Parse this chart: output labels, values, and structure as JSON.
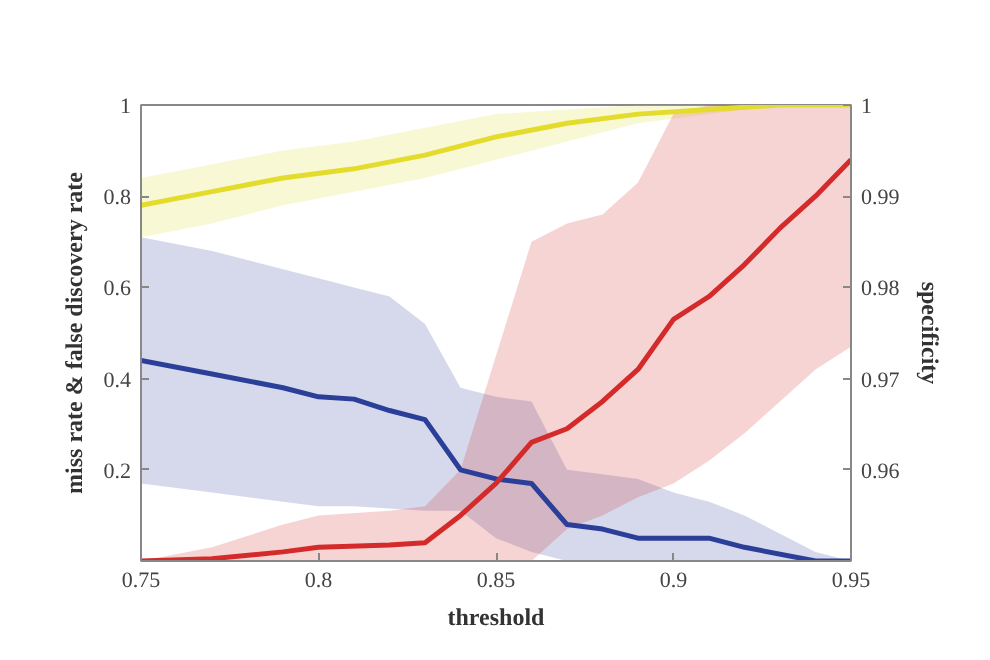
{
  "chart_data": {
    "type": "line",
    "xlabel": "threshold",
    "ylabel": "miss rate & false discovery rate",
    "y2label": "specificity",
    "xlim": [
      0.75,
      0.95
    ],
    "xticks": [
      0.75,
      0.8,
      0.85,
      0.9,
      0.95
    ],
    "ylim": [
      0,
      1
    ],
    "yticks": [
      {
        "value": 0,
        "label": null
      },
      0.2,
      0.4,
      0.6,
      0.8,
      1
    ],
    "y2lim": [
      0.95,
      1
    ],
    "y2ticks": [
      0.96,
      0.97,
      0.98,
      0.99,
      1
    ],
    "grid": false,
    "series": [
      {
        "color": "#e3dc2c",
        "axis": "y2",
        "x": [
          0.75,
          0.77,
          0.79,
          0.81,
          0.83,
          0.85,
          0.87,
          0.89,
          0.91,
          0.93,
          0.95
        ],
        "values": [
          0.989,
          0.9905,
          0.992,
          0.993,
          0.9945,
          0.9965,
          0.998,
          0.999,
          0.9995,
          1.0,
          1.0
        ],
        "lower": [
          0.9855,
          0.987,
          0.989,
          0.9905,
          0.992,
          0.994,
          0.996,
          0.998,
          0.999,
          1.0,
          1.0
        ],
        "upper": [
          0.992,
          0.9935,
          0.995,
          0.996,
          0.9975,
          0.999,
          0.9995,
          1.0,
          1.0,
          1.0,
          1.0
        ]
      },
      {
        "color": "#2b3f99",
        "x": [
          0.75,
          0.77,
          0.79,
          0.8,
          0.81,
          0.82,
          0.83,
          0.84,
          0.85,
          0.86,
          0.87,
          0.88,
          0.89,
          0.9,
          0.91,
          0.92,
          0.94,
          0.95
        ],
        "values": [
          0.44,
          0.41,
          0.38,
          0.36,
          0.355,
          0.33,
          0.31,
          0.2,
          0.18,
          0.17,
          0.08,
          0.07,
          0.05,
          0.05,
          0.05,
          0.03,
          0.0,
          0.0
        ],
        "lower": [
          0.17,
          0.15,
          0.13,
          0.12,
          0.12,
          0.115,
          0.11,
          0.11,
          0.05,
          0.02,
          0.0,
          0.0,
          0.0,
          0.0,
          0.0,
          0.0,
          0.0,
          0.0
        ],
        "upper": [
          0.71,
          0.68,
          0.64,
          0.62,
          0.6,
          0.58,
          0.52,
          0.38,
          0.36,
          0.35,
          0.2,
          0.19,
          0.18,
          0.15,
          0.13,
          0.1,
          0.02,
          0.0
        ]
      },
      {
        "color": "#d42a2a",
        "x": [
          0.75,
          0.77,
          0.79,
          0.8,
          0.82,
          0.83,
          0.84,
          0.85,
          0.86,
          0.87,
          0.88,
          0.89,
          0.9,
          0.91,
          0.92,
          0.93,
          0.94,
          0.95
        ],
        "values": [
          0.0,
          0.005,
          0.02,
          0.03,
          0.035,
          0.04,
          0.1,
          0.17,
          0.26,
          0.29,
          0.35,
          0.42,
          0.53,
          0.58,
          0.65,
          0.73,
          0.8,
          0.88
        ],
        "lower": [
          0.0,
          0.0,
          0.0,
          0.0,
          0.0,
          0.0,
          0.0,
          0.0,
          0.0,
          0.07,
          0.1,
          0.14,
          0.17,
          0.22,
          0.28,
          0.35,
          0.42,
          0.47
        ],
        "upper": [
          0.0,
          0.03,
          0.08,
          0.1,
          0.11,
          0.12,
          0.2,
          0.45,
          0.7,
          0.74,
          0.76,
          0.83,
          0.98,
          1.0,
          1.0,
          1.0,
          1.0,
          1.0
        ]
      }
    ]
  }
}
